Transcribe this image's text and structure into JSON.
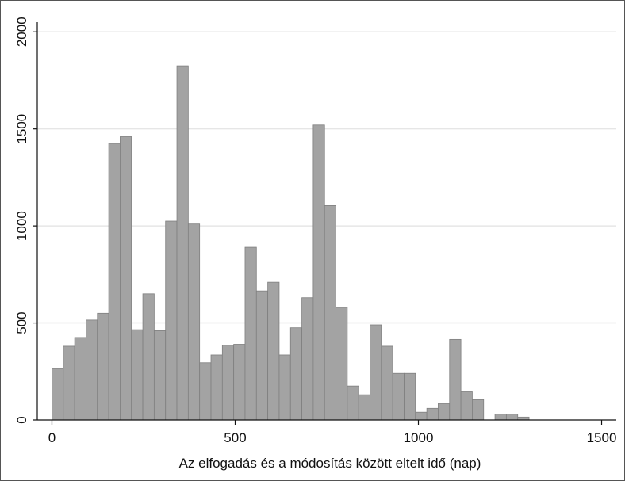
{
  "chart_data": {
    "type": "bar",
    "title": "",
    "xlabel": "Az elfogadás és a módosítás között eltelt idő (nap)",
    "ylabel": "",
    "xlim": [
      -40,
      1540
    ],
    "ylim": [
      0,
      2050
    ],
    "x_ticks": [
      0,
      500,
      1000,
      1500
    ],
    "y_ticks": [
      0,
      500,
      1000,
      1500,
      2000
    ],
    "x_tick_labels": [
      "0",
      "500",
      "1000",
      "1500"
    ],
    "y_tick_labels": [
      "0",
      "500",
      "1000",
      "1500",
      "2000"
    ],
    "grid": true,
    "bin_width": 31,
    "bin_starts": [
      0,
      31,
      62,
      93,
      124,
      155,
      186,
      217,
      248,
      279,
      310,
      341,
      372,
      403,
      434,
      465,
      496,
      527,
      558,
      589,
      620,
      651,
      682,
      713,
      744,
      775,
      806,
      837,
      868,
      899,
      930,
      961,
      992,
      1023,
      1054,
      1085,
      1116,
      1147,
      1178,
      1209,
      1240,
      1271
    ],
    "values": [
      265,
      380,
      425,
      515,
      550,
      1425,
      1460,
      465,
      650,
      460,
      1025,
      1825,
      1010,
      295,
      335,
      385,
      390,
      890,
      665,
      710,
      335,
      475,
      630,
      1520,
      1105,
      580,
      175,
      130,
      490,
      380,
      240,
      240,
      40,
      60,
      85,
      415,
      145,
      105,
      0,
      30,
      30,
      15
    ],
    "colors": {
      "bar_fill": "#a3a3a3",
      "bar_stroke": "#7f7f7f",
      "grid": "#e6e6e6",
      "plot_bg": "#ffffff"
    }
  }
}
